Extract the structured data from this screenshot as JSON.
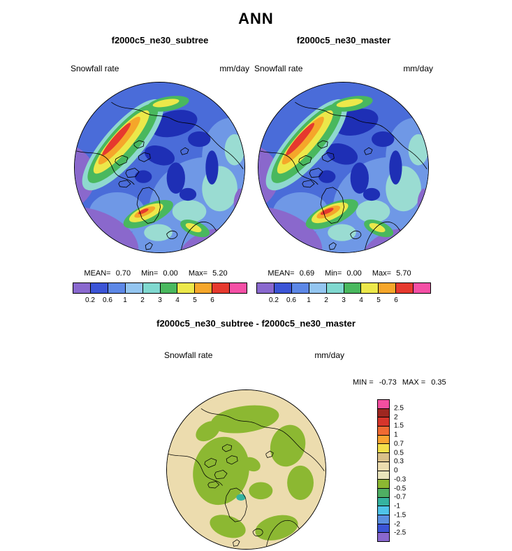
{
  "title": "ANN",
  "panels": [
    {
      "title": "f2000c5_ne30_subtree",
      "var_label": "Snowfall rate",
      "units": "mm/day",
      "stats": {
        "mean_label": "MEAN=",
        "mean": "0.70",
        "min_label": "Min=",
        "min": "0.00",
        "max_label": "Max=",
        "max": "5.20"
      }
    },
    {
      "title": "f2000c5_ne30_master",
      "var_label": "Snowfall rate",
      "units": "mm/day",
      "stats": {
        "mean_label": "MEAN=",
        "mean": "0.69",
        "min_label": "Min=",
        "min": "0.00",
        "max_label": "Max=",
        "max": "5.70"
      }
    }
  ],
  "colorbar": {
    "tick_labels": [
      "0.2",
      "0.6",
      "1",
      "2",
      "3",
      "4",
      "5",
      "6"
    ],
    "colors": [
      "#8968ce",
      "#3b54d6",
      "#5c87e6",
      "#93c5f0",
      "#7fd8cf",
      "#49b85e",
      "#ece84a",
      "#f5a62a",
      "#e6392e",
      "#f44fa5"
    ]
  },
  "diff": {
    "title": "f2000c5_ne30_subtree - f2000c5_ne30_master",
    "var_label": "Snowfall rate",
    "units": "mm/day",
    "min_label": "MIN =",
    "min": "-0.73",
    "max_label": "MAX =",
    "max": "0.35",
    "colorbar": {
      "tick_labels": [
        "2.5",
        "2",
        "1.5",
        "1",
        "0.7",
        "0.5",
        "0.3",
        "0",
        "-0.3",
        "-0.5",
        "-0.7",
        "-1",
        "-1.5",
        "-2",
        "-2.5"
      ],
      "colors": [
        "#f24fa0",
        "#9e2720",
        "#d6352b",
        "#ef6a32",
        "#f9a432",
        "#f4e04b",
        "#d9c08a",
        "#ecdcae",
        "#e9e4bb",
        "#8cb832",
        "#4fae63",
        "#35b3a0",
        "#4fc3e8",
        "#5b8fe0",
        "#3b54d6",
        "#8968ce"
      ]
    }
  },
  "chart_data": [
    {
      "type": "heatmap",
      "subtype": "polar-stereographic-contour-map",
      "season": "ANN",
      "title": "f2000c5_ne30_subtree",
      "variable": "Snowfall rate",
      "units": "mm/day",
      "contour_levels": [
        0.2,
        0.6,
        1,
        2,
        3,
        4,
        5,
        6
      ],
      "stats": {
        "mean": 0.7,
        "min": 0.0,
        "max": 5.2
      },
      "legend_position": "bottom"
    },
    {
      "type": "heatmap",
      "subtype": "polar-stereographic-contour-map",
      "season": "ANN",
      "title": "f2000c5_ne30_master",
      "variable": "Snowfall rate",
      "units": "mm/day",
      "contour_levels": [
        0.2,
        0.6,
        1,
        2,
        3,
        4,
        5,
        6
      ],
      "stats": {
        "mean": 0.69,
        "min": 0.0,
        "max": 5.7
      },
      "legend_position": "bottom"
    },
    {
      "type": "heatmap",
      "subtype": "polar-stereographic-contour-map-difference",
      "season": "ANN",
      "title": "f2000c5_ne30_subtree - f2000c5_ne30_master",
      "variable": "Snowfall rate",
      "units": "mm/day",
      "contour_levels": [
        2.5,
        2,
        1.5,
        1,
        0.7,
        0.5,
        0.3,
        0,
        -0.3,
        -0.5,
        -0.7,
        -1,
        -1.5,
        -2,
        -2.5
      ],
      "stats": {
        "min": -0.73,
        "max": 0.35
      },
      "legend_position": "right"
    }
  ]
}
